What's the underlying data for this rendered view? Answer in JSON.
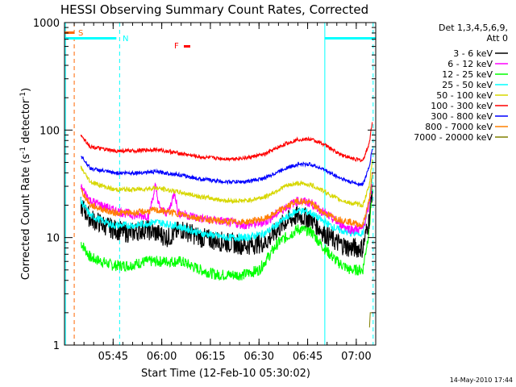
{
  "chart_data": {
    "type": "line",
    "title": "HESSI Observing Summary Count Rates, Corrected",
    "xlabel": "Start Time (12-Feb-10 05:30:02)",
    "ylabel_main": "Corrected Count Rate (s",
    "ylabel_sup1": "-1",
    "ylabel_mid": " detector",
    "ylabel_sup2": "-1",
    "ylabel_end": ")",
    "ylog": true,
    "ylim": [
      1,
      1000
    ],
    "xlim_minutes": [
      330,
      426
    ],
    "x_ticks": [
      {
        "t": 345,
        "label": "05:45"
      },
      {
        "t": 360,
        "label": "06:00"
      },
      {
        "t": 375,
        "label": "06:15"
      },
      {
        "t": 390,
        "label": "06:30"
      },
      {
        "t": 405,
        "label": "06:45"
      },
      {
        "t": 420,
        "label": "07:00"
      }
    ],
    "y_ticks": [
      {
        "v": 1,
        "label": "1"
      },
      {
        "v": 10,
        "label": "10"
      },
      {
        "v": 100,
        "label": "100"
      },
      {
        "v": 1000,
        "label": "1000"
      }
    ],
    "legend_header": [
      "Det 1,3,4,5,6,9,",
      "Att 0"
    ],
    "legend_position": "right",
    "series": [
      {
        "name": "3 - 6 keV",
        "color": "#000000",
        "base": 15,
        "noise": 0.22,
        "curve": [
          [
            333,
            null
          ],
          [
            335,
            20
          ],
          [
            338,
            15
          ],
          [
            345,
            12
          ],
          [
            350,
            11
          ],
          [
            355,
            12
          ],
          [
            362,
            10
          ],
          [
            366,
            12
          ],
          [
            372,
            10
          ],
          [
            380,
            9
          ],
          [
            386,
            8.5
          ],
          [
            392,
            9
          ],
          [
            398,
            14
          ],
          [
            402,
            16
          ],
          [
            406,
            15
          ],
          [
            410,
            11
          ],
          [
            414,
            9
          ],
          [
            418,
            8
          ],
          [
            422,
            8
          ],
          [
            424,
            15
          ],
          [
            425,
            30
          ]
        ]
      },
      {
        "name": "6 - 12 keV",
        "color": "#ff00ff",
        "base": 20,
        "noise": 0.1,
        "curve": [
          [
            333,
            null
          ],
          [
            335,
            30
          ],
          [
            338,
            22
          ],
          [
            345,
            18
          ],
          [
            352,
            16
          ],
          [
            356,
            16
          ],
          [
            358,
            30
          ],
          [
            359.5,
            18
          ],
          [
            362,
            17
          ],
          [
            364,
            27
          ],
          [
            365,
            17
          ],
          [
            372,
            15
          ],
          [
            380,
            14
          ],
          [
            386,
            13
          ],
          [
            392,
            14
          ],
          [
            398,
            19
          ],
          [
            402,
            22
          ],
          [
            406,
            21
          ],
          [
            410,
            17
          ],
          [
            414,
            14
          ],
          [
            418,
            12
          ],
          [
            422,
            12
          ],
          [
            424,
            20
          ],
          [
            425,
            35
          ]
        ]
      },
      {
        "name": "12 - 25 keV",
        "color": "#00ff00",
        "base": 6,
        "noise": 0.12,
        "curve": [
          [
            333,
            null
          ],
          [
            335,
            9
          ],
          [
            338,
            6.5
          ],
          [
            345,
            5.5
          ],
          [
            350,
            5.5
          ],
          [
            355,
            6
          ],
          [
            362,
            6
          ],
          [
            366,
            6
          ],
          [
            372,
            5
          ],
          [
            377,
            4.5
          ],
          [
            385,
            4.5
          ],
          [
            390,
            5
          ],
          [
            396,
            9
          ],
          [
            402,
            12
          ],
          [
            406,
            11.5
          ],
          [
            410,
            8
          ],
          [
            414,
            6
          ],
          [
            418,
            5
          ],
          [
            422,
            5
          ],
          [
            424,
            12
          ],
          [
            425,
            30
          ]
        ]
      },
      {
        "name": "25 - 50 keV",
        "color": "#00ffff",
        "base": 14,
        "noise": 0.08,
        "curve": [
          [
            333,
            null
          ],
          [
            335,
            22
          ],
          [
            338,
            16
          ],
          [
            345,
            13
          ],
          [
            352,
            13
          ],
          [
            358,
            14
          ],
          [
            364,
            13
          ],
          [
            372,
            11
          ],
          [
            380,
            10
          ],
          [
            386,
            10
          ],
          [
            392,
            11
          ],
          [
            398,
            15
          ],
          [
            402,
            18
          ],
          [
            406,
            17
          ],
          [
            410,
            14
          ],
          [
            414,
            12
          ],
          [
            418,
            11
          ],
          [
            422,
            11
          ],
          [
            424,
            22
          ],
          [
            425,
            38
          ]
        ]
      },
      {
        "name": "50 - 100 keV",
        "color": "#d7d700",
        "base": 28,
        "noise": 0.05,
        "curve": [
          [
            333,
            null
          ],
          [
            335,
            45
          ],
          [
            338,
            33
          ],
          [
            345,
            28
          ],
          [
            352,
            28
          ],
          [
            358,
            29
          ],
          [
            364,
            27
          ],
          [
            372,
            24
          ],
          [
            380,
            22
          ],
          [
            386,
            22
          ],
          [
            392,
            24
          ],
          [
            398,
            30
          ],
          [
            402,
            32
          ],
          [
            406,
            31
          ],
          [
            410,
            27
          ],
          [
            414,
            23
          ],
          [
            418,
            21
          ],
          [
            422,
            20
          ],
          [
            424,
            30
          ],
          [
            425,
            55
          ]
        ]
      },
      {
        "name": "100 - 300 keV",
        "color": "#ff0000",
        "base": 65,
        "noise": 0.04,
        "curve": [
          [
            333,
            null
          ],
          [
            335,
            90
          ],
          [
            338,
            70
          ],
          [
            345,
            64
          ],
          [
            352,
            64
          ],
          [
            358,
            66
          ],
          [
            364,
            62
          ],
          [
            372,
            56
          ],
          [
            380,
            54
          ],
          [
            386,
            55
          ],
          [
            392,
            60
          ],
          [
            398,
            74
          ],
          [
            402,
            82
          ],
          [
            406,
            82
          ],
          [
            410,
            74
          ],
          [
            414,
            62
          ],
          [
            418,
            55
          ],
          [
            422,
            52
          ],
          [
            424,
            75
          ],
          [
            425,
            125
          ]
        ]
      },
      {
        "name": "300 - 800 keV",
        "color": "#0000ff",
        "base": 40,
        "noise": 0.04,
        "curve": [
          [
            333,
            null
          ],
          [
            335,
            58
          ],
          [
            338,
            44
          ],
          [
            345,
            40
          ],
          [
            352,
            40
          ],
          [
            358,
            41
          ],
          [
            364,
            39
          ],
          [
            372,
            35
          ],
          [
            380,
            33
          ],
          [
            386,
            33
          ],
          [
            392,
            36
          ],
          [
            398,
            44
          ],
          [
            402,
            48
          ],
          [
            406,
            48
          ],
          [
            410,
            43
          ],
          [
            414,
            37
          ],
          [
            418,
            33
          ],
          [
            422,
            31
          ],
          [
            424,
            45
          ],
          [
            425,
            70
          ]
        ]
      },
      {
        "name": "800 - 7000 keV",
        "color": "#ff8000",
        "base": 17,
        "noise": 0.07,
        "curve": [
          [
            333,
            null
          ],
          [
            335,
            28
          ],
          [
            338,
            20
          ],
          [
            345,
            17
          ],
          [
            352,
            17
          ],
          [
            358,
            18
          ],
          [
            364,
            17
          ],
          [
            372,
            15
          ],
          [
            380,
            14
          ],
          [
            386,
            14
          ],
          [
            392,
            15
          ],
          [
            398,
            19
          ],
          [
            402,
            22
          ],
          [
            406,
            21
          ],
          [
            410,
            17
          ],
          [
            414,
            15
          ],
          [
            418,
            14
          ],
          [
            422,
            13
          ],
          [
            424,
            22
          ],
          [
            425,
            40
          ]
        ]
      },
      {
        "name": "7000 - 20000 keV",
        "color": "#808000",
        "base": 1,
        "noise": 0,
        "curve": [
          [
            424,
            1.3
          ],
          [
            424.3,
            2
          ],
          [
            425,
            2
          ]
        ]
      }
    ],
    "markers": [
      {
        "label": "S",
        "color": "#ff6600"
      },
      {
        "label": "N",
        "color": "#00ffff"
      },
      {
        "label": "F",
        "color": "#ff0000"
      }
    ],
    "footer_date": "14-May-2010 17:44"
  }
}
